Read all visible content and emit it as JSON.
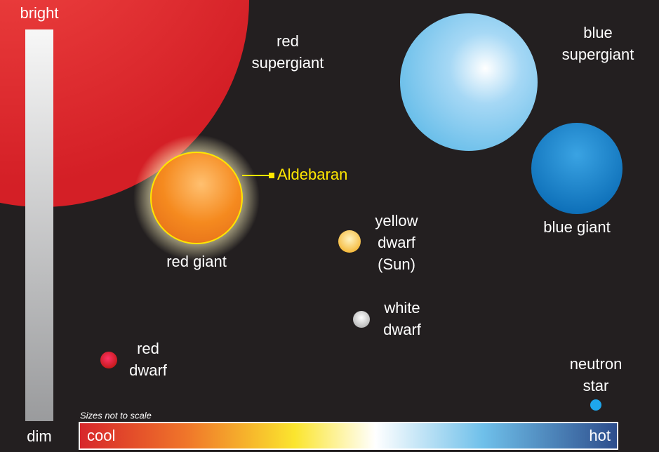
{
  "axis": {
    "bright": "bright",
    "dim": "dim",
    "cool": "cool",
    "hot": "hot"
  },
  "note": "Sizes not to scale",
  "stars": [
    {
      "label": [
        "red",
        "supergiant"
      ]
    },
    {
      "label": [
        "blue",
        "supergiant"
      ]
    },
    {
      "label": [
        "blue giant"
      ]
    },
    {
      "label": [
        "red giant"
      ],
      "callout": "Aldebaran"
    },
    {
      "label": [
        "yellow",
        "dwarf",
        "(Sun)"
      ]
    },
    {
      "label": [
        "white",
        "dwarf"
      ]
    },
    {
      "label": [
        "red",
        "dwarf"
      ]
    },
    {
      "label": [
        "neutron",
        "star"
      ]
    }
  ]
}
